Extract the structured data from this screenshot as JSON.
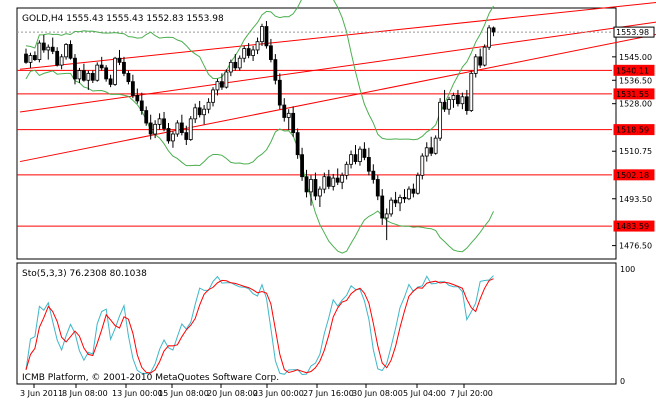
{
  "chart_data": [
    {
      "type": "candlestick",
      "title": "GOLD,H4  1555.43 1555.43 1552.83 1553.98",
      "y_axis": {
        "ylim": [
          1472,
          1562
        ],
        "ticks": [
          1545.0,
          1536.5,
          1528.0,
          1510.75,
          1493.5,
          1476.5
        ],
        "tick_labels": [
          "1545.00",
          "1536.50",
          "1528.00",
          "1510.75",
          "1493.50",
          "1476.50"
        ]
      },
      "x_ticks": [
        "3 Jun 2011",
        "8 Jun 08:00",
        "13 Jun 00:00",
        "15 Jun 08:00",
        "20 Jun 08:00",
        "23 Jun 00:00",
        "27 Jun 16:00",
        "30 Jun 08:00",
        "5 Jul 04:00",
        "7 Jul 20:00"
      ],
      "price_labels": [
        {
          "value": 1553.98,
          "label": "1553.98",
          "style": "current"
        },
        {
          "value": 1540.11,
          "label": "1540.11",
          "style": "level"
        },
        {
          "value": 1531.55,
          "label": "1531.55",
          "style": "level"
        },
        {
          "value": 1518.59,
          "label": "1518.59",
          "style": "level"
        },
        {
          "value": 1502.18,
          "label": "1502.18",
          "style": "level"
        },
        {
          "value": 1483.59,
          "label": "1483.59",
          "style": "level"
        }
      ],
      "horizontal_levels": [
        1540.11,
        1531.55,
        1518.59,
        1502.18,
        1483.59
      ],
      "trend_lines": [
        {
          "from": [
            0,
            1540.5
          ],
          "to": [
            152,
            1566.5
          ]
        },
        {
          "from": [
            0,
            1525.0
          ],
          "to": [
            152,
            1560.0
          ]
        },
        {
          "from": [
            0,
            1507.0
          ],
          "to": [
            152,
            1556.5
          ]
        }
      ],
      "candles_ohlc": [
        [
          1546.0,
          1548.0,
          1542.5,
          1543.0
        ],
        [
          1543.0,
          1546.5,
          1541.0,
          1545.5
        ],
        [
          1545.5,
          1547.0,
          1543.5,
          1544.0
        ],
        [
          1544.0,
          1551.0,
          1543.0,
          1550.0
        ],
        [
          1550.0,
          1553.0,
          1546.5,
          1547.5
        ],
        [
          1547.5,
          1549.5,
          1544.0,
          1548.5
        ],
        [
          1548.5,
          1552.0,
          1546.0,
          1547.0
        ],
        [
          1547.0,
          1548.5,
          1541.5,
          1542.0
        ],
        [
          1542.0,
          1546.0,
          1540.5,
          1545.0
        ],
        [
          1545.0,
          1550.0,
          1544.0,
          1549.5
        ],
        [
          1549.5,
          1551.0,
          1544.0,
          1544.5
        ],
        [
          1544.5,
          1546.0,
          1535.0,
          1537.0
        ],
        [
          1537.0,
          1541.0,
          1535.5,
          1540.0
        ],
        [
          1540.0,
          1542.5,
          1536.0,
          1536.5
        ],
        [
          1536.5,
          1540.0,
          1533.0,
          1539.0
        ],
        [
          1539.0,
          1540.0,
          1535.5,
          1536.5
        ],
        [
          1536.5,
          1543.0,
          1536.0,
          1542.0
        ],
        [
          1542.0,
          1545.0,
          1540.0,
          1541.0
        ],
        [
          1541.0,
          1542.0,
          1536.0,
          1537.0
        ],
        [
          1537.0,
          1538.5,
          1534.0,
          1535.0
        ],
        [
          1535.0,
          1545.0,
          1534.5,
          1544.5
        ],
        [
          1544.5,
          1547.5,
          1542.0,
          1543.0
        ],
        [
          1543.0,
          1545.0,
          1538.0,
          1539.0
        ],
        [
          1539.0,
          1540.0,
          1535.0,
          1536.0
        ],
        [
          1536.0,
          1538.5,
          1530.0,
          1531.0
        ],
        [
          1531.0,
          1533.5,
          1528.0,
          1529.0
        ],
        [
          1529.0,
          1532.0,
          1524.0,
          1525.5
        ],
        [
          1525.5,
          1527.0,
          1520.0,
          1521.0
        ],
        [
          1521.0,
          1524.0,
          1515.0,
          1517.0
        ],
        [
          1517.0,
          1522.0,
          1515.5,
          1520.5
        ],
        [
          1520.5,
          1524.5,
          1518.5,
          1522.5
        ],
        [
          1522.5,
          1525.0,
          1518.0,
          1519.0
        ],
        [
          1519.0,
          1521.0,
          1513.5,
          1514.5
        ],
        [
          1514.5,
          1518.0,
          1512.0,
          1517.0
        ],
        [
          1517.0,
          1522.0,
          1516.0,
          1521.0
        ],
        [
          1521.0,
          1524.0,
          1516.5,
          1517.5
        ],
        [
          1517.5,
          1520.0,
          1513.0,
          1515.0
        ],
        [
          1515.0,
          1523.5,
          1514.5,
          1522.5
        ],
        [
          1522.5,
          1528.0,
          1521.0,
          1526.5
        ],
        [
          1526.5,
          1529.0,
          1523.0,
          1524.0
        ],
        [
          1524.0,
          1527.5,
          1520.5,
          1526.0
        ],
        [
          1526.0,
          1530.0,
          1524.5,
          1528.5
        ],
        [
          1528.5,
          1534.0,
          1527.0,
          1533.0
        ],
        [
          1533.0,
          1537.0,
          1531.0,
          1536.0
        ],
        [
          1536.0,
          1539.0,
          1533.0,
          1534.0
        ],
        [
          1534.0,
          1540.5,
          1533.5,
          1539.5
        ],
        [
          1539.5,
          1544.0,
          1538.0,
          1543.0
        ],
        [
          1543.0,
          1546.0,
          1540.0,
          1541.0
        ],
        [
          1541.0,
          1545.5,
          1540.0,
          1544.5
        ],
        [
          1544.5,
          1549.0,
          1543.0,
          1548.0
        ],
        [
          1548.0,
          1550.0,
          1544.5,
          1545.5
        ],
        [
          1545.5,
          1549.0,
          1543.5,
          1547.5
        ],
        [
          1547.5,
          1552.0,
          1546.0,
          1550.5
        ],
        [
          1550.5,
          1557.0,
          1549.0,
          1556.0
        ],
        [
          1556.0,
          1558.0,
          1548.0,
          1549.0
        ],
        [
          1549.0,
          1551.5,
          1543.0,
          1544.0
        ],
        [
          1544.0,
          1546.0,
          1535.0,
          1536.5
        ],
        [
          1536.5,
          1539.0,
          1526.0,
          1527.5
        ],
        [
          1527.5,
          1530.0,
          1521.5,
          1523.0
        ],
        [
          1523.0,
          1526.0,
          1518.5,
          1524.5
        ],
        [
          1524.5,
          1527.0,
          1516.0,
          1517.5
        ],
        [
          1517.5,
          1519.0,
          1508.0,
          1509.5
        ],
        [
          1509.5,
          1512.0,
          1500.0,
          1501.5
        ],
        [
          1501.5,
          1504.0,
          1494.0,
          1496.0
        ],
        [
          1496.0,
          1502.0,
          1491.0,
          1500.5
        ],
        [
          1500.5,
          1503.0,
          1493.0,
          1494.5
        ],
        [
          1494.5,
          1498.0,
          1490.5,
          1497.0
        ],
        [
          1497.0,
          1503.0,
          1495.5,
          1501.5
        ],
        [
          1501.5,
          1504.0,
          1497.0,
          1498.0
        ],
        [
          1498.0,
          1502.5,
          1496.5,
          1501.0
        ],
        [
          1501.0,
          1504.5,
          1498.5,
          1499.5
        ],
        [
          1499.5,
          1503.0,
          1497.0,
          1502.0
        ],
        [
          1502.0,
          1507.0,
          1500.5,
          1506.0
        ],
        [
          1506.0,
          1511.0,
          1504.5,
          1509.5
        ],
        [
          1509.5,
          1513.0,
          1506.0,
          1507.0
        ],
        [
          1507.0,
          1512.5,
          1505.5,
          1511.5
        ],
        [
          1511.5,
          1514.0,
          1507.5,
          1508.5
        ],
        [
          1508.5,
          1512.0,
          1502.0,
          1503.5
        ],
        [
          1503.5,
          1506.0,
          1499.0,
          1500.5
        ],
        [
          1500.5,
          1502.0,
          1493.0,
          1494.5
        ],
        [
          1494.5,
          1497.0,
          1484.0,
          1486.5
        ],
        [
          1486.5,
          1490.0,
          1478.5,
          1488.0
        ],
        [
          1488.0,
          1494.0,
          1487.0,
          1493.0
        ],
        [
          1493.0,
          1496.0,
          1490.5,
          1492.0
        ],
        [
          1492.0,
          1495.0,
          1489.0,
          1494.0
        ],
        [
          1494.0,
          1497.0,
          1492.0,
          1493.5
        ],
        [
          1493.5,
          1498.0,
          1493.0,
          1497.0
        ],
        [
          1497.0,
          1499.0,
          1494.0,
          1495.5
        ],
        [
          1495.5,
          1503.0,
          1495.0,
          1502.0
        ],
        [
          1502.0,
          1510.0,
          1500.5,
          1509.0
        ],
        [
          1509.0,
          1514.0,
          1507.0,
          1512.0
        ],
        [
          1512.0,
          1516.0,
          1509.0,
          1510.0
        ],
        [
          1510.0,
          1516.5,
          1509.5,
          1515.5
        ],
        [
          1515.5,
          1530.0,
          1514.5,
          1528.5
        ],
        [
          1528.5,
          1533.0,
          1525.0,
          1526.0
        ],
        [
          1526.0,
          1530.5,
          1524.0,
          1529.5
        ],
        [
          1529.5,
          1532.0,
          1526.5,
          1531.0
        ],
        [
          1531.0,
          1533.0,
          1527.0,
          1528.0
        ],
        [
          1528.0,
          1532.0,
          1526.0,
          1530.5
        ],
        [
          1530.5,
          1533.0,
          1524.0,
          1525.5
        ],
        [
          1525.5,
          1540.0,
          1525.0,
          1539.0
        ],
        [
          1539.0,
          1546.0,
          1537.5,
          1545.0
        ],
        [
          1545.0,
          1548.0,
          1541.0,
          1542.0
        ],
        [
          1542.0,
          1549.5,
          1541.5,
          1548.5
        ],
        [
          1548.5,
          1556.5,
          1547.5,
          1555.5
        ],
        [
          1555.5,
          1556.0,
          1552.5,
          1554.0
        ]
      ]
    },
    {
      "type": "line",
      "title": "Sto(5,3,3) 76.2308 80.1038",
      "ylim": [
        0,
        100
      ],
      "tick_labels": [
        "100",
        "0"
      ]
    }
  ],
  "footer": {
    "text": "ICMB Platform, © 2001-2010 MetaQuotes Software Corp."
  },
  "colors": {
    "bands": "#4caf50",
    "levels": "#ff0000",
    "stoch_main": "#3fb6c8",
    "stoch_signal": "#ff0000",
    "price_label_bg": "#ff0000",
    "current_label_bg": "#ffffff"
  }
}
